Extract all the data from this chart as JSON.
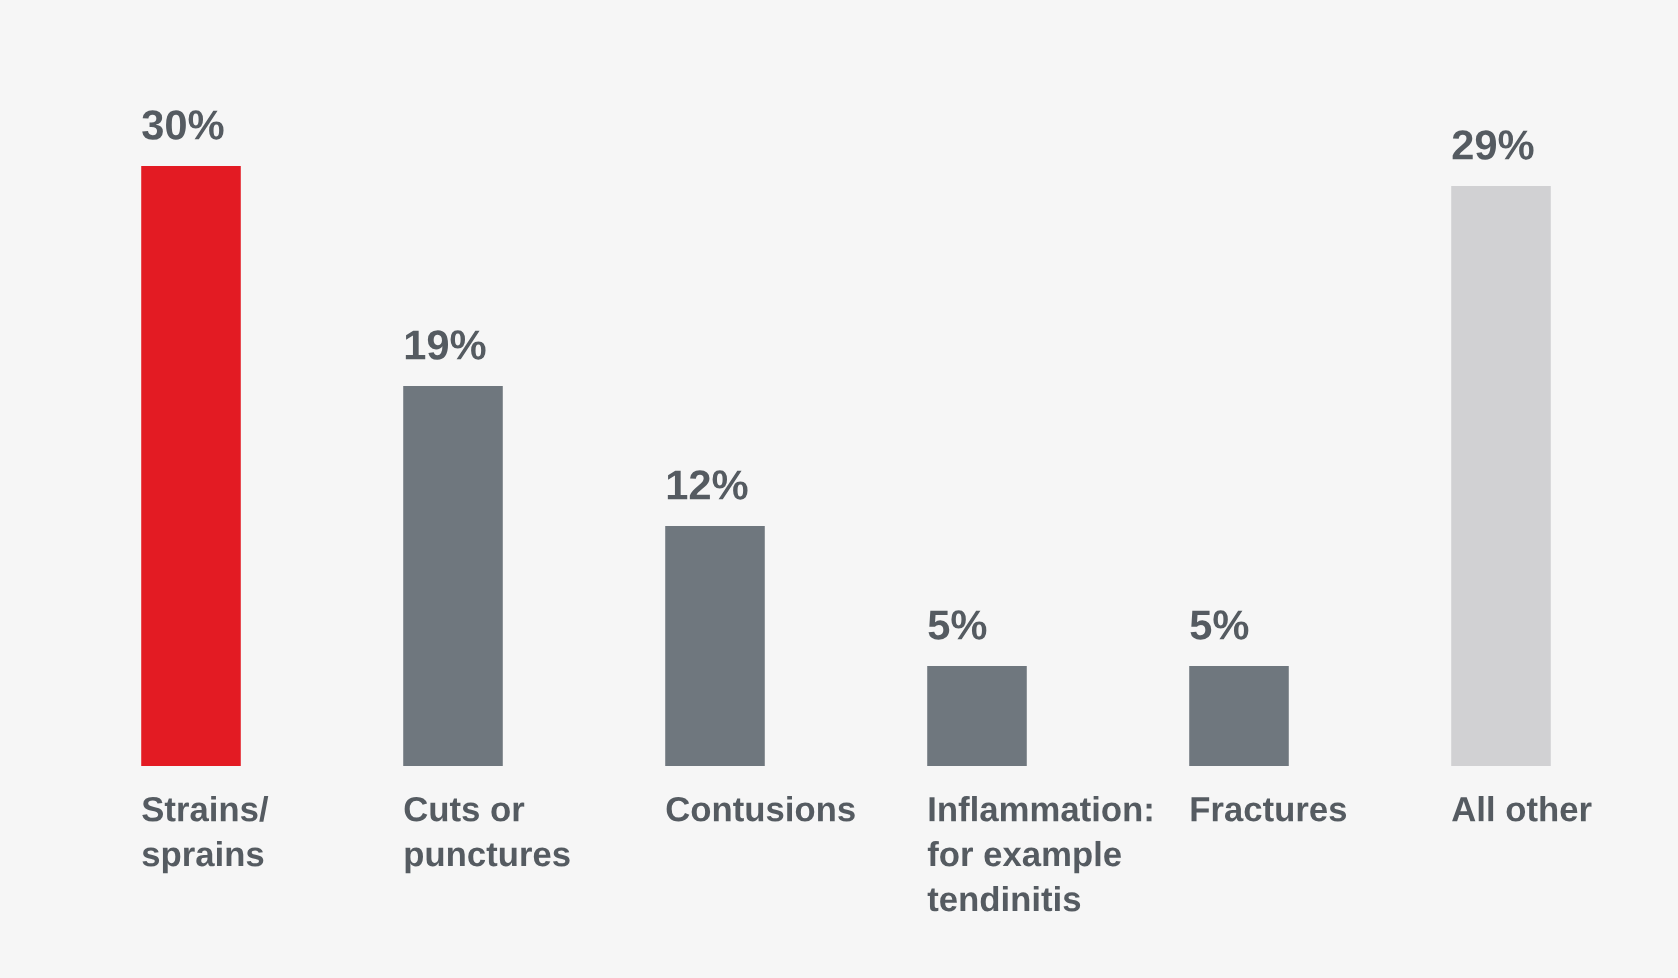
{
  "chart_data": {
    "type": "bar",
    "categories": [
      "Strains/\nsprains",
      "Cuts or\npunctures",
      "Contusions",
      "Inflammation:\nfor example\ntendinitis",
      "Fractures",
      "All other"
    ],
    "values": [
      30,
      19,
      12,
      5,
      5,
      29
    ],
    "colors": [
      "#e31b23",
      "#6f777e",
      "#6f777e",
      "#6f777e",
      "#6f777e",
      "#d1d1d3"
    ],
    "value_labels": [
      "30%",
      "19%",
      "12%",
      "5%",
      "5%",
      "29%"
    ]
  }
}
